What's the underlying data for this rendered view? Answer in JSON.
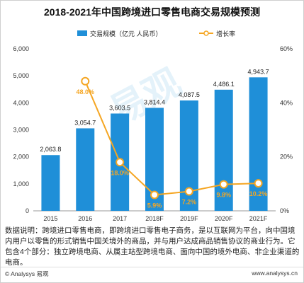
{
  "title": "2018-2021年中国跨境进口零售电商交易规模预测",
  "legend": {
    "bar_label": "交易规模（亿元 人民币）",
    "line_label": "增长率"
  },
  "chart_data": {
    "type": "bar",
    "categories": [
      "2015",
      "2016",
      "2017",
      "2018F",
      "2019F",
      "2020F",
      "2021F"
    ],
    "series": [
      {
        "name": "交易规模（亿元 人民币）",
        "type": "bar",
        "axis": "left",
        "values": [
          2063.8,
          3054.7,
          3603.5,
          3814.4,
          4087.5,
          4486.1,
          4943.7
        ],
        "labels": [
          "2,063.8",
          "3,054.7",
          "3,603.5",
          "3,814.4",
          "4,087.5",
          "4,486.1",
          "4,943.7"
        ]
      },
      {
        "name": "增长率",
        "type": "line",
        "axis": "right",
        "values": [
          null,
          48.0,
          18.0,
          5.9,
          7.2,
          9.8,
          10.2
        ],
        "labels": [
          null,
          "48.0%",
          "18.0%",
          "5.9%",
          "7.2%",
          "9.8%",
          "10.2%"
        ]
      }
    ],
    "y_left": {
      "min": 0,
      "max": 6000,
      "ticks": [
        "0",
        "1,000",
        "2,000",
        "3,000",
        "4,000",
        "5,000",
        "6,000"
      ]
    },
    "y_right": {
      "min": 0,
      "max": 60,
      "ticks": [
        "0%",
        "20%",
        "40%",
        "60%"
      ]
    },
    "grid": false,
    "legend_position": "top",
    "colors": {
      "bar": "#1f8fd8",
      "line": "#f5a623",
      "label": "#f5a623"
    }
  },
  "note": "数据说明：跨境进口零售电商，即跨境进口零售电子商务，是以互联网为平台，向中国境内用户以零售的形式销售中国关境外的商品，并与用户达成商品销售协议的商业行为。它包含4个部分：独立跨境电商、从属主站型跨境电商、面向中国的境外电商、非企业渠道的电商。",
  "footer": {
    "brand": "© Analysys 易观",
    "site": "www.analysys.cn"
  }
}
